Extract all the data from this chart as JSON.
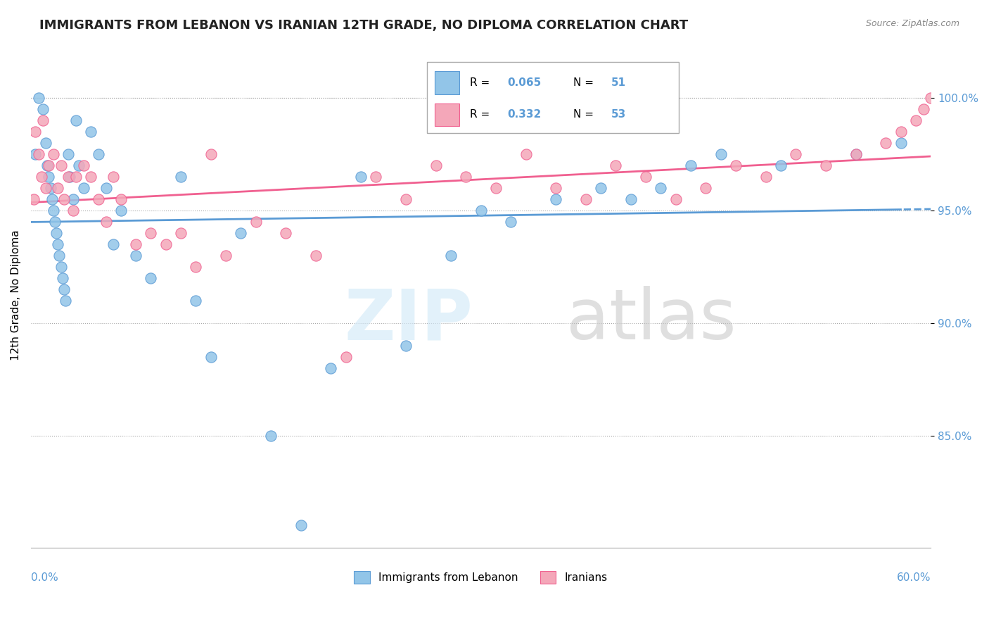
{
  "title": "IMMIGRANTS FROM LEBANON VS IRANIAN 12TH GRADE, NO DIPLOMA CORRELATION CHART",
  "source": "Source: ZipAtlas.com",
  "xlim": [
    0.0,
    60.0
  ],
  "ylim": [
    80.0,
    102.5
  ],
  "legend_label1": "Immigrants from Lebanon",
  "legend_label2": "Iranians",
  "R1": 0.065,
  "N1": 51,
  "R2": 0.332,
  "N2": 53,
  "color_blue": "#92C5E8",
  "color_pink": "#F4A7B9",
  "color_line_blue": "#5B9BD5",
  "color_line_pink": "#F06090",
  "yticks": [
    85,
    90,
    95,
    100
  ],
  "blue_x": [
    0.3,
    0.5,
    0.8,
    1.0,
    1.1,
    1.2,
    1.3,
    1.4,
    1.5,
    1.6,
    1.7,
    1.8,
    1.9,
    2.0,
    2.1,
    2.2,
    2.3,
    2.5,
    2.6,
    2.8,
    3.0,
    3.2,
    3.5,
    4.0,
    4.5,
    5.0,
    5.5,
    6.0,
    7.0,
    8.0,
    10.0,
    11.0,
    12.0,
    14.0,
    16.0,
    18.0,
    20.0,
    22.0,
    25.0,
    28.0,
    30.0,
    32.0,
    35.0,
    38.0,
    40.0,
    42.0,
    44.0,
    46.0,
    50.0,
    55.0,
    58.0
  ],
  "blue_y": [
    97.5,
    100.0,
    99.5,
    98.0,
    97.0,
    96.5,
    96.0,
    95.5,
    95.0,
    94.5,
    94.0,
    93.5,
    93.0,
    92.5,
    92.0,
    91.5,
    91.0,
    97.5,
    96.5,
    95.5,
    99.0,
    97.0,
    96.0,
    98.5,
    97.5,
    96.0,
    93.5,
    95.0,
    93.0,
    92.0,
    96.5,
    91.0,
    88.5,
    94.0,
    85.0,
    81.0,
    88.0,
    96.5,
    89.0,
    93.0,
    95.0,
    94.5,
    95.5,
    96.0,
    95.5,
    96.0,
    97.0,
    97.5,
    97.0,
    97.5,
    98.0
  ],
  "pink_x": [
    0.2,
    0.3,
    0.5,
    0.7,
    0.8,
    1.0,
    1.2,
    1.5,
    1.8,
    2.0,
    2.2,
    2.5,
    2.8,
    3.0,
    3.5,
    4.0,
    4.5,
    5.0,
    5.5,
    6.0,
    7.0,
    8.0,
    9.0,
    10.0,
    11.0,
    12.0,
    13.0,
    15.0,
    17.0,
    19.0,
    21.0,
    23.0,
    25.0,
    27.0,
    29.0,
    31.0,
    33.0,
    35.0,
    37.0,
    39.0,
    41.0,
    43.0,
    45.0,
    47.0,
    49.0,
    51.0,
    53.0,
    55.0,
    57.0,
    58.0,
    59.0,
    59.5,
    60.0
  ],
  "pink_y": [
    95.5,
    98.5,
    97.5,
    96.5,
    99.0,
    96.0,
    97.0,
    97.5,
    96.0,
    97.0,
    95.5,
    96.5,
    95.0,
    96.5,
    97.0,
    96.5,
    95.5,
    94.5,
    96.5,
    95.5,
    93.5,
    94.0,
    93.5,
    94.0,
    92.5,
    97.5,
    93.0,
    94.5,
    94.0,
    93.0,
    88.5,
    96.5,
    95.5,
    97.0,
    96.5,
    96.0,
    97.5,
    96.0,
    95.5,
    97.0,
    96.5,
    95.5,
    96.0,
    97.0,
    96.5,
    97.5,
    97.0,
    97.5,
    98.0,
    98.5,
    99.0,
    99.5,
    100.0
  ]
}
